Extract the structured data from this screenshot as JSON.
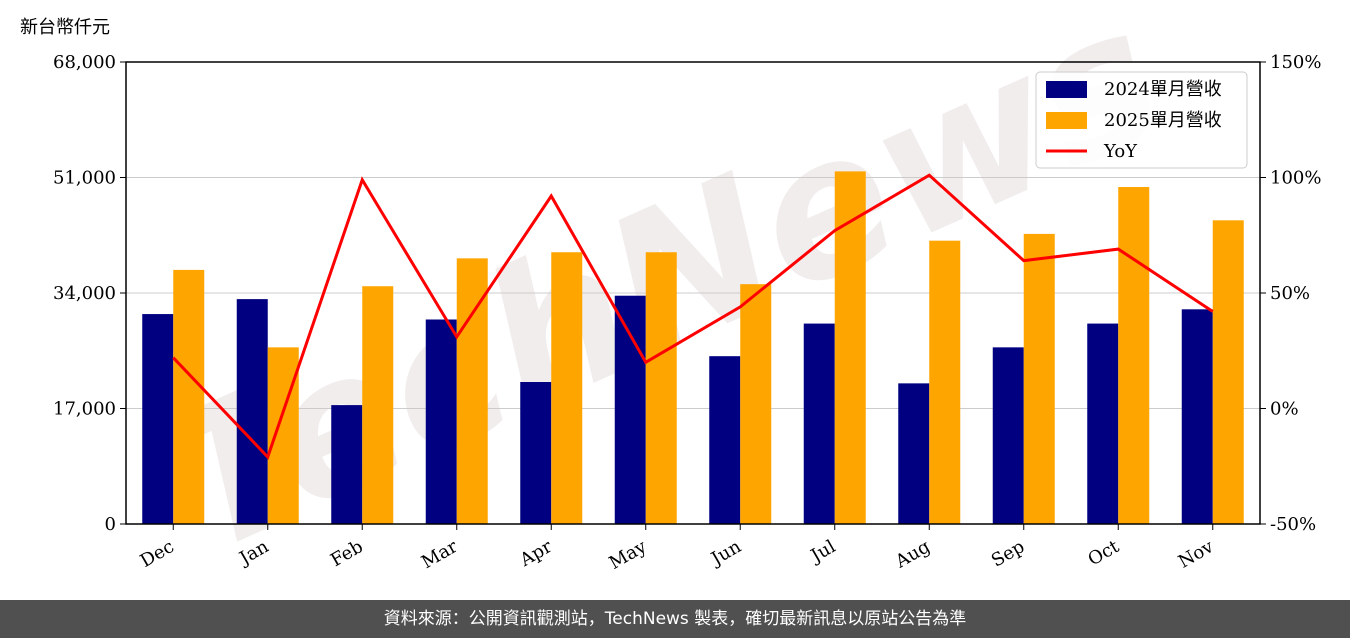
{
  "chart_data": {
    "type": "bar",
    "y_unit_label": "新台幣仟元",
    "categories": [
      "Dec",
      "Jan",
      "Feb",
      "Mar",
      "Apr",
      "May",
      "Jun",
      "Jul",
      "Aug",
      "Sep",
      "Oct",
      "Nov"
    ],
    "series": [
      {
        "name": "2024單月營收",
        "type": "bar",
        "axis": "left",
        "color": "#000080",
        "values": [
          30900,
          33100,
          17500,
          30100,
          20900,
          33600,
          24700,
          29500,
          20700,
          26000,
          29500,
          31600
        ]
      },
      {
        "name": "2025單月營收",
        "type": "bar",
        "axis": "left",
        "color": "#FFA500",
        "values": [
          37400,
          26000,
          35000,
          39100,
          40000,
          40000,
          35300,
          51900,
          41700,
          42700,
          49600,
          44700
        ]
      },
      {
        "name": "YoY",
        "type": "line",
        "axis": "right",
        "color": "#FF0000",
        "values": [
          22,
          -21,
          99,
          31,
          92,
          20,
          44,
          77,
          101,
          64,
          69,
          42
        ]
      }
    ],
    "y_left": {
      "min": 0,
      "max": 68000,
      "ticks": [
        "0",
        "17,000",
        "34,000",
        "51,000",
        "68,000"
      ]
    },
    "y_right": {
      "min": -50,
      "max": 150,
      "ticks": [
        "-50%",
        "0%",
        "50%",
        "100%",
        "150%"
      ]
    },
    "grid": true,
    "legend_position": "top-right",
    "watermark": "TechNews"
  },
  "footer": {
    "text": "資料來源：公開資訊觀測站，TechNews 製表，確切最新訊息以原站公告為準"
  }
}
